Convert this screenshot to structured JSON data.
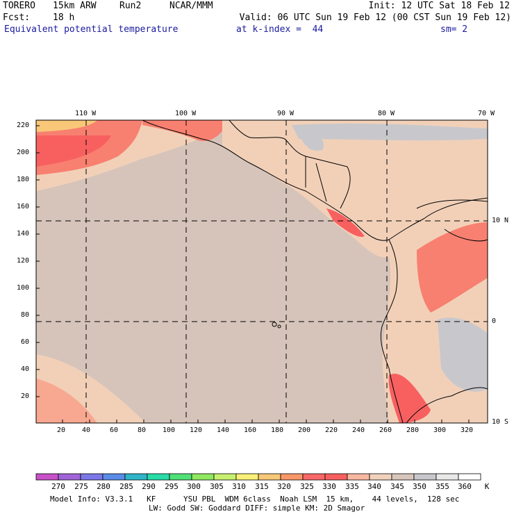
{
  "header": {
    "model": "TORERO",
    "resolution": "15km ARW",
    "run": "Run2",
    "org": "NCAR/MMM",
    "init": "Init: 12 UTC Sat 18 Feb 12",
    "fcst_label": "Fcst:",
    "fcst_value": "18 h",
    "valid": "Valid: 06 UTC Sun 19 Feb 12 (00 CST Sun 19 Feb 12)",
    "field": "Equivalent potential temperature",
    "level": "at k-index =  44",
    "smoothing": "sm= 2"
  },
  "map_axes": {
    "lon_labels": [
      "110 W",
      "100 W",
      "90 W",
      "80 W",
      "70 W"
    ],
    "lat_labels": [
      "10 N",
      "0",
      "10 S"
    ],
    "y_ticks": [
      "220",
      "200",
      "180",
      "160",
      "140",
      "120",
      "100",
      "80",
      "60",
      "40",
      "20"
    ],
    "x_ticks": [
      "20",
      "40",
      "60",
      "80",
      "100",
      "120",
      "140",
      "160",
      "180",
      "200",
      "220",
      "240",
      "260",
      "280",
      "300",
      "320"
    ]
  },
  "colorbar": {
    "unit": "K",
    "labels": [
      "270",
      "275",
      "280",
      "285",
      "290",
      "295",
      "300",
      "305",
      "310",
      "315",
      "320",
      "325",
      "330",
      "335",
      "340",
      "345",
      "350",
      "355",
      "360"
    ],
    "colors": [
      "#c850c8",
      "#a064d8",
      "#7c78e8",
      "#5a8ce8",
      "#30b4c8",
      "#28dca8",
      "#50e078",
      "#90e860",
      "#c8f070",
      "#f8f078",
      "#f8c878",
      "#f89868",
      "#f86868",
      "#f86060",
      "#f8b8a0",
      "#f0d2bc",
      "#d8c6bc",
      "#c8c8cc",
      "#e8e8e8",
      "#ffffff"
    ]
  },
  "footer": {
    "line1": "Model Info: V3.3.1   KF      YSU PBL  WDM 6class  Noah LSM  15 km,    44 levels,  128 sec",
    "line2": "LW: Godd SW: Goddard DIFF: simple KM: 2D Smagor"
  }
}
